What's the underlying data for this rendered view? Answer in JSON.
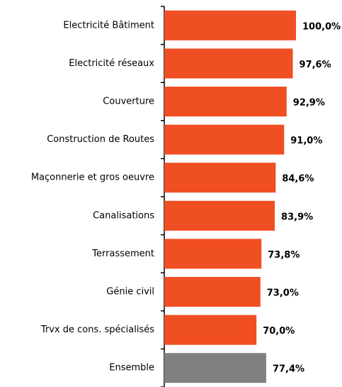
{
  "chart_data": {
    "type": "hbar",
    "categories": [
      "Electricité Bâtiment",
      "Electricité réseaux",
      "Couverture",
      "Construction de Routes",
      "Maçonnerie et gros oeuvre",
      "Canalisations",
      "Terrassement",
      "Génie civil",
      "Trvx de cons. spécialisés",
      "Ensemble"
    ],
    "values": [
      100.0,
      97.6,
      92.9,
      91.0,
      84.6,
      83.9,
      73.8,
      73.0,
      70.0,
      77.4
    ],
    "value_labels": [
      "100,0%",
      "97,6%",
      "92,9%",
      "91,0%",
      "84,6%",
      "83,9%",
      "73,8%",
      "73,0%",
      "70,0%",
      "77,4%"
    ],
    "colors": [
      "#f04e23",
      "#f04e23",
      "#f04e23",
      "#f04e23",
      "#f04e23",
      "#f04e23",
      "#f04e23",
      "#f04e23",
      "#f04e23",
      "#808080"
    ],
    "xlim": [
      0,
      100
    ]
  }
}
